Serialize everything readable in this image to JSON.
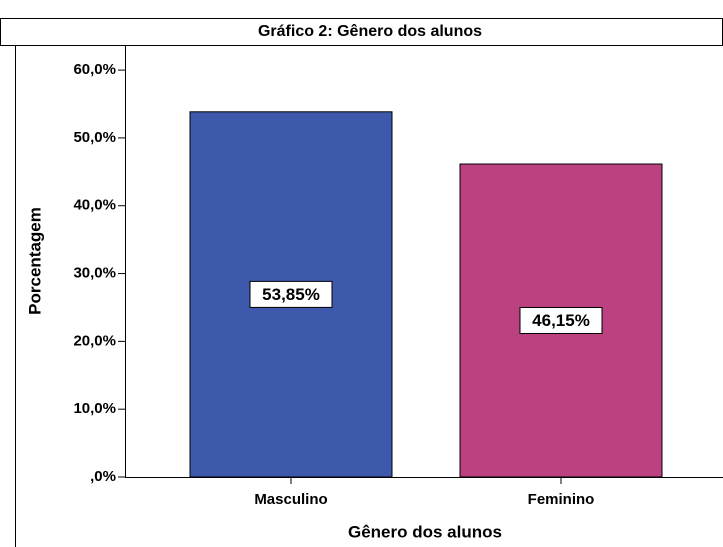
{
  "chart_data": {
    "type": "bar",
    "title": "Gráfico 2: Gênero dos alunos",
    "x_label": "Gênero dos alunos",
    "y_label": "Porcentagem",
    "categories": [
      "Masculino",
      "Feminino"
    ],
    "values": [
      53.85,
      46.15
    ],
    "value_labels": [
      "53,85%",
      "46,15%"
    ],
    "colors": [
      "#3e58ac",
      "#bc4180"
    ],
    "ylim": [
      0,
      63.7
    ],
    "yticks": [
      {
        "value": 0,
        "label": ",0%"
      },
      {
        "value": 10,
        "label": "10,0%"
      },
      {
        "value": 20,
        "label": "20,0%"
      },
      {
        "value": 30,
        "label": "30,0%"
      },
      {
        "value": 40,
        "label": "40,0%"
      },
      {
        "value": 50,
        "label": "50,0%"
      },
      {
        "value": 60,
        "label": "60,0%"
      }
    ]
  }
}
